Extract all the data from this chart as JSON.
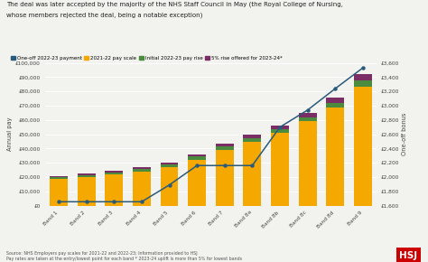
{
  "title_line1": "The deal was later accepted by the majority of the NHS Staff Council in May (the Royal College of Nursing,",
  "title_line2": "whose members rejected the deal, being a notable exception)",
  "categories": [
    "Band 1",
    "Band 2",
    "Band 3",
    "Band 4",
    "Band 5",
    "Band 6",
    "Band 7",
    "Band 8a",
    "Band 8b",
    "Band 8c",
    "Band 8d",
    "Band 9"
  ],
  "pay_scale_2122": [
    18546,
    19918,
    21730,
    23949,
    27055,
    32306,
    38890,
    44629,
    50952,
    58972,
    68525,
    83571
  ],
  "pay_rise_2223": [
    1395,
    1405,
    1488,
    1640,
    1852,
    2093,
    2462,
    2561,
    2751,
    3028,
    3497,
    4215
  ],
  "rise_5pct_2324": [
    1000,
    1016,
    1111,
    1279,
    1445,
    1720,
    2067,
    2351,
    2683,
    3100,
    3601,
    4389
  ],
  "one_off_payment": [
    1655,
    1655,
    1655,
    1655,
    1890,
    2162,
    2162,
    2162,
    2700,
    2939,
    3239,
    3530
  ],
  "color_pay_scale": "#F5A800",
  "color_pay_rise": "#4B8B3E",
  "color_5pct": "#7B2D65",
  "color_one_off_line": "#2A5A7A",
  "ylim_left": [
    0,
    100000
  ],
  "ylim_right": [
    1600,
    3600
  ],
  "ylabel_left": "Annual pay",
  "ylabel_right": "One-off bonus",
  "source_text": "Source: NHS Employers pay scales for 2021-22 and 2022-23; Information provided to HSJ\nPay rates are taken at the entry/lowest point for each band * 2023-24 uplift is more than 5% for lowest bands",
  "legend_labels": [
    "One-off 2022-23 payment",
    "2021-22 pay scale",
    "Initial 2022-23 pay rise",
    "5% rise offered for 2023-24*"
  ],
  "background_color": "#F2F2EE"
}
